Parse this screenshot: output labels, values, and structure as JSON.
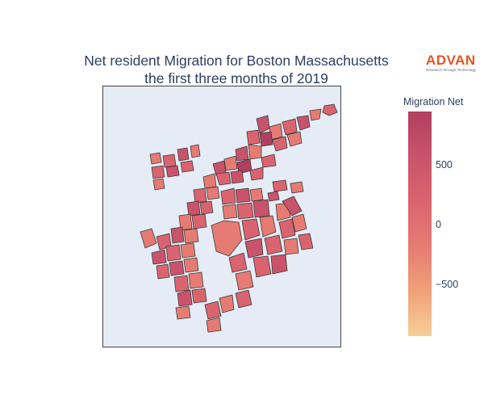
{
  "title_line1": "Net resident Migration for Boston Massachusetts",
  "title_line2": "the first three months of 2019",
  "logo": {
    "word": "ADVAN",
    "tagline": "Research through Technology",
    "color": "#e8541e"
  },
  "colorbar": {
    "title": "Migration Net",
    "ticks": [
      "500",
      "0",
      "−500"
    ],
    "range": [
      -950,
      900
    ],
    "colors": [
      "#f6cf98",
      "#f0a078",
      "#e67b73",
      "#d9646f",
      "#c9536b",
      "#b0405f"
    ]
  },
  "map": {
    "background": "#e5ecf6",
    "outline_color": "#444444"
  }
}
